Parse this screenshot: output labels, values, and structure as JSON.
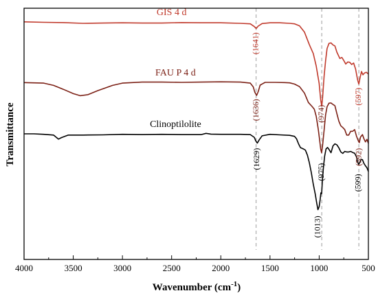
{
  "colors": {
    "gis": "#c0392b",
    "fau": "#7b1f14",
    "clino": "#000000",
    "guide": "#9a9a9a"
  },
  "chart_data": {
    "type": "line",
    "title": "",
    "xlabel": "Wavenumber (cm",
    "xlabel_sup": "-1",
    "xlabel_suffix": ")",
    "ylabel": "Transmittance",
    "xlim": [
      4000,
      500
    ],
    "ylim": [
      0,
      100
    ],
    "x_reversed": true,
    "grid": false,
    "xticks": [
      4000,
      3500,
      3000,
      2500,
      2000,
      1500,
      1000,
      500
    ],
    "xtick_labels": [
      "4000",
      "3500",
      "3000",
      "2500",
      "2000",
      "1500",
      "1000",
      "500"
    ],
    "guides": [
      1641,
      974,
      597
    ],
    "series": [
      {
        "name": "GIS 4 d",
        "color": "#c0392b",
        "points": [
          [
            4000,
            94.6
          ],
          [
            3800,
            94.4
          ],
          [
            3600,
            94.3
          ],
          [
            3400,
            94.0
          ],
          [
            3200,
            94.1
          ],
          [
            3000,
            94.2
          ],
          [
            2800,
            94.1
          ],
          [
            2600,
            94.1
          ],
          [
            2400,
            94.3
          ],
          [
            2200,
            94.2
          ],
          [
            2000,
            94.2
          ],
          [
            1800,
            94.0
          ],
          [
            1700,
            93.8
          ],
          [
            1660,
            92.7
          ],
          [
            1641,
            91.9
          ],
          [
            1620,
            92.9
          ],
          [
            1580,
            93.9
          ],
          [
            1500,
            94.2
          ],
          [
            1400,
            94.2
          ],
          [
            1300,
            94.0
          ],
          [
            1250,
            93.8
          ],
          [
            1200,
            93.0
          ],
          [
            1150,
            90.5
          ],
          [
            1100,
            85.5
          ],
          [
            1060,
            82.0
          ],
          [
            1030,
            77.0
          ],
          [
            1000,
            70.0
          ],
          [
            985,
            63.5
          ],
          [
            974,
            61.0
          ],
          [
            965,
            64.5
          ],
          [
            950,
            73.0
          ],
          [
            935,
            79.0
          ],
          [
            920,
            84.0
          ],
          [
            900,
            86.0
          ],
          [
            880,
            86.2
          ],
          [
            860,
            85.4
          ],
          [
            840,
            85.0
          ],
          [
            820,
            82.5
          ],
          [
            790,
            80.0
          ],
          [
            770,
            80.4
          ],
          [
            750,
            79.2
          ],
          [
            730,
            77.8
          ],
          [
            710,
            78.6
          ],
          [
            690,
            78.5
          ],
          [
            670,
            77.6
          ],
          [
            650,
            78.2
          ],
          [
            630,
            75.8
          ],
          [
            610,
            71.5
          ],
          [
            597,
            69.8
          ],
          [
            585,
            72.2
          ],
          [
            570,
            74.8
          ],
          [
            555,
            73.5
          ],
          [
            540,
            74.2
          ],
          [
            520,
            74.5
          ],
          [
            500,
            73.8
          ]
        ]
      },
      {
        "name": "FAU P 4 d",
        "color": "#7b1f14",
        "points": [
          [
            4000,
            70.4
          ],
          [
            3800,
            70.2
          ],
          [
            3700,
            69.3
          ],
          [
            3600,
            67.7
          ],
          [
            3500,
            66.0
          ],
          [
            3430,
            65.2
          ],
          [
            3350,
            65.6
          ],
          [
            3250,
            67.2
          ],
          [
            3100,
            69.3
          ],
          [
            3000,
            70.2
          ],
          [
            2800,
            70.6
          ],
          [
            2600,
            70.6
          ],
          [
            2400,
            70.5
          ],
          [
            2200,
            70.6
          ],
          [
            2000,
            70.7
          ],
          [
            1800,
            70.6
          ],
          [
            1700,
            70.2
          ],
          [
            1670,
            68.7
          ],
          [
            1655,
            66.6
          ],
          [
            1636,
            65.3
          ],
          [
            1620,
            66.8
          ],
          [
            1600,
            69.4
          ],
          [
            1550,
            70.5
          ],
          [
            1450,
            70.5
          ],
          [
            1350,
            70.4
          ],
          [
            1300,
            70.3
          ],
          [
            1250,
            69.8
          ],
          [
            1200,
            68.8
          ],
          [
            1150,
            66.2
          ],
          [
            1110,
            62.5
          ],
          [
            1070,
            60.8
          ],
          [
            1050,
            59.8
          ],
          [
            1030,
            57.0
          ],
          [
            1010,
            52.0
          ],
          [
            995,
            47.5
          ],
          [
            985,
            44.0
          ],
          [
            975,
            42.5
          ],
          [
            965,
            45.5
          ],
          [
            950,
            51.5
          ],
          [
            935,
            57.5
          ],
          [
            920,
            60.8
          ],
          [
            900,
            62.2
          ],
          [
            880,
            62.3
          ],
          [
            860,
            61.7
          ],
          [
            840,
            61.2
          ],
          [
            820,
            58.0
          ],
          [
            800,
            55.0
          ],
          [
            780,
            53.2
          ],
          [
            760,
            52.5
          ],
          [
            740,
            51.7
          ],
          [
            720,
            49.5
          ],
          [
            700,
            49.5
          ],
          [
            680,
            51.0
          ],
          [
            660,
            51.0
          ],
          [
            640,
            51.7
          ],
          [
            620,
            49.0
          ],
          [
            600,
            47.0
          ],
          [
            592,
            46.5
          ],
          [
            580,
            48.7
          ],
          [
            560,
            49.7
          ],
          [
            545,
            48.0
          ],
          [
            530,
            46.8
          ],
          [
            515,
            47.8
          ],
          [
            500,
            46.2
          ]
        ]
      },
      {
        "name": "Clinoptilolite",
        "color": "#000000",
        "points": [
          [
            4000,
            50.0
          ],
          [
            3900,
            50.0
          ],
          [
            3800,
            49.8
          ],
          [
            3700,
            49.5
          ],
          [
            3650,
            47.9
          ],
          [
            3620,
            48.5
          ],
          [
            3550,
            49.5
          ],
          [
            3400,
            49.5
          ],
          [
            3200,
            49.6
          ],
          [
            3000,
            49.8
          ],
          [
            2800,
            49.7
          ],
          [
            2600,
            49.8
          ],
          [
            2400,
            49.7
          ],
          [
            2200,
            49.7
          ],
          [
            2150,
            50.2
          ],
          [
            2100,
            49.9
          ],
          [
            2000,
            49.8
          ],
          [
            1800,
            49.8
          ],
          [
            1700,
            49.7
          ],
          [
            1660,
            48.6
          ],
          [
            1645,
            47.2
          ],
          [
            1629,
            46.3
          ],
          [
            1610,
            47.6
          ],
          [
            1580,
            49.2
          ],
          [
            1500,
            49.8
          ],
          [
            1400,
            49.6
          ],
          [
            1300,
            49.4
          ],
          [
            1250,
            49.0
          ],
          [
            1230,
            48.0
          ],
          [
            1210,
            46.0
          ],
          [
            1190,
            44.5
          ],
          [
            1160,
            44.0
          ],
          [
            1140,
            43.5
          ],
          [
            1120,
            41.5
          ],
          [
            1100,
            38.5
          ],
          [
            1080,
            34.5
          ],
          [
            1060,
            30.0
          ],
          [
            1040,
            26.0
          ],
          [
            1025,
            22.5
          ],
          [
            1013,
            19.8
          ],
          [
            1000,
            21.0
          ],
          [
            990,
            24.0
          ],
          [
            983,
            26.5
          ],
          [
            975,
            26.2
          ],
          [
            968,
            31.0
          ],
          [
            958,
            36.0
          ],
          [
            945,
            41.0
          ],
          [
            930,
            44.0
          ],
          [
            915,
            44.6
          ],
          [
            900,
            43.8
          ],
          [
            880,
            42.5
          ],
          [
            860,
            45.2
          ],
          [
            840,
            46.0
          ],
          [
            820,
            45.6
          ],
          [
            800,
            44.4
          ],
          [
            780,
            42.8
          ],
          [
            760,
            42.2
          ],
          [
            740,
            43.0
          ],
          [
            720,
            42.8
          ],
          [
            700,
            42.8
          ],
          [
            680,
            43.0
          ],
          [
            660,
            42.6
          ],
          [
            640,
            42.3
          ],
          [
            620,
            40.8
          ],
          [
            610,
            38.8
          ],
          [
            599,
            37.9
          ],
          [
            590,
            38.4
          ],
          [
            575,
            39.8
          ],
          [
            560,
            39.7
          ],
          [
            545,
            38.2
          ],
          [
            530,
            37.3
          ],
          [
            515,
            36.5
          ],
          [
            500,
            35.0
          ]
        ]
      }
    ],
    "annotations": [
      {
        "text": "GIS 4 d",
        "series": 0,
        "x": 2500,
        "y": 97.2,
        "rotated": false
      },
      {
        "text": "FAU P 4 d",
        "series": 1,
        "x": 2460,
        "y": 73.2,
        "rotated": false
      },
      {
        "text": "Clinoptilolite",
        "series": 2,
        "x": 2460,
        "y": 52.7,
        "rotated": false
      },
      {
        "text": "(1641)",
        "series": 0,
        "x": 1641,
        "y": 86.0,
        "rotated": true
      },
      {
        "text": "(597)",
        "series": 0,
        "x": 597,
        "y": 64.8,
        "rotated": true
      },
      {
        "text": "(1636)",
        "series": 1,
        "x": 1636,
        "y": 59.5,
        "rotated": true
      },
      {
        "text": "(974)",
        "series": 1,
        "x": 974,
        "y": 58.0,
        "rotated": true
      },
      {
        "text": "(592)",
        "series": 1,
        "x": 592,
        "y": 40.8,
        "rotated": true
      },
      {
        "text": "(1629)",
        "series": 2,
        "x": 1629,
        "y": 40.0,
        "rotated": true
      },
      {
        "text": "(975)",
        "series": 2,
        "x": 975,
        "y": 34.8,
        "rotated": true
      },
      {
        "text": "(599)",
        "series": 2,
        "x": 599,
        "y": 30.5,
        "rotated": true
      },
      {
        "text": "(1013)",
        "series": 2,
        "x": 1013,
        "y": 13.0,
        "rotated": true
      }
    ]
  }
}
